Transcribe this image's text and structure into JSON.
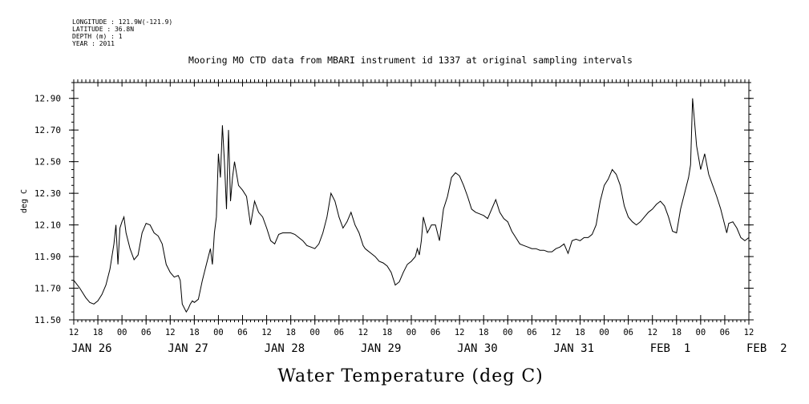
{
  "meta": [
    "LONGITUDE : 121.9W(-121.9)",
    "LATITUDE : 36.8N",
    "DEPTH (m) : 1",
    "YEAR : 2011"
  ],
  "chart_data": {
    "type": "line",
    "title": "Mooring MO CTD data from MBARI instrument id 1337 at original sampling intervals",
    "xlabel": "Water Temperature (deg C)",
    "ylabel": "deg C",
    "ylim": [
      11.5,
      13.0
    ],
    "yticks": [
      "11.50",
      "11.70",
      "11.90",
      "12.10",
      "12.30",
      "12.50",
      "12.70",
      "12.90"
    ],
    "xlim_hours_since_jan26_00": [
      12,
      180
    ],
    "hour_ticks": [
      "12",
      "18",
      "00",
      "06",
      "12",
      "18",
      "00",
      "06",
      "12",
      "18",
      "00",
      "06",
      "12",
      "18",
      "00",
      "06",
      "12",
      "18",
      "00",
      "06",
      "12",
      "18",
      "00",
      "06",
      "12",
      "18",
      "00",
      "06",
      "12"
    ],
    "date_labels": [
      "JAN 26",
      "JAN 27",
      "JAN 28",
      "JAN 29",
      "JAN 30",
      "JAN 31",
      "FEB  1",
      "FEB  2"
    ],
    "series": [
      {
        "x": [
          12,
          13.5,
          15,
          16,
          17,
          18,
          19,
          20,
          21,
          21.5,
          22,
          22.5,
          23,
          23.5,
          24,
          24.5,
          25,
          26,
          27,
          28,
          29,
          30,
          31,
          32,
          33,
          34,
          35,
          36,
          37,
          38,
          38.5,
          39,
          40,
          40.5,
          41,
          41.5,
          42,
          43,
          44,
          45,
          46,
          46.5,
          47,
          47.5,
          48,
          48.5,
          49,
          49.5,
          50,
          50.5,
          51,
          51.5,
          52,
          53,
          54,
          55,
          56,
          57,
          58,
          59,
          60,
          61,
          62,
          63,
          64,
          65,
          66,
          67,
          68,
          69,
          70,
          71,
          72,
          73,
          74,
          75,
          76,
          77,
          78,
          79,
          80,
          81,
          82,
          83,
          84,
          84.5,
          85,
          86,
          87,
          88,
          89,
          90,
          91,
          92,
          93,
          94,
          95,
          96,
          97,
          97.5,
          98,
          98.5,
          99,
          100,
          101,
          102,
          103,
          104,
          105,
          106,
          107,
          108,
          109,
          110,
          111,
          112,
          113,
          114,
          115,
          116,
          117,
          118,
          119,
          120,
          121,
          122,
          123,
          124,
          125,
          126,
          127,
          128,
          129,
          130,
          131,
          132,
          133,
          134,
          135,
          136,
          137,
          138,
          139,
          140,
          141,
          142,
          143,
          144,
          145,
          146,
          147,
          148,
          149,
          150,
          151,
          152,
          153,
          154,
          155,
          156,
          157,
          158,
          159,
          160,
          161,
          162,
          163,
          164,
          165,
          165.5,
          166,
          167,
          168,
          169,
          170,
          171,
          172,
          173,
          174,
          174.5,
          175,
          176,
          177,
          178,
          179,
          180
        ],
        "values": [
          11.75,
          11.7,
          11.64,
          11.61,
          11.6,
          11.62,
          11.66,
          11.72,
          11.82,
          11.9,
          11.98,
          12.1,
          11.85,
          12.08,
          12.12,
          12.15,
          12.05,
          11.95,
          11.88,
          11.91,
          12.05,
          12.11,
          12.1,
          12.05,
          12.03,
          11.98,
          11.85,
          11.8,
          11.77,
          11.78,
          11.75,
          11.6,
          11.55,
          11.57,
          11.6,
          11.62,
          11.61,
          11.63,
          11.75,
          11.85,
          11.95,
          11.85,
          12.05,
          12.15,
          12.55,
          12.4,
          12.73,
          12.5,
          12.2,
          12.7,
          12.25,
          12.4,
          12.5,
          12.35,
          12.32,
          12.28,
          12.1,
          12.25,
          12.18,
          12.15,
          12.08,
          12.0,
          11.98,
          12.04,
          12.05,
          12.05,
          12.05,
          12.04,
          12.02,
          12.0,
          11.97,
          11.96,
          11.95,
          11.98,
          12.05,
          12.15,
          12.3,
          12.25,
          12.15,
          12.08,
          12.12,
          12.18,
          12.1,
          12.05,
          11.97,
          11.95,
          11.94,
          11.92,
          11.9,
          11.87,
          11.86,
          11.84,
          11.8,
          11.72,
          11.74,
          11.8,
          11.85,
          11.87,
          11.9,
          11.95,
          11.91,
          12.0,
          12.15,
          12.05,
          12.1,
          12.1,
          12.0,
          12.2,
          12.28,
          12.4,
          12.43,
          12.41,
          12.35,
          12.28,
          12.2,
          12.18,
          12.17,
          12.16,
          12.14,
          12.2,
          12.26,
          12.18,
          12.14,
          12.12,
          12.06,
          12.02,
          11.98,
          11.97,
          11.96,
          11.95,
          11.95,
          11.94,
          11.94,
          11.93,
          11.93,
          11.95,
          11.96,
          11.98,
          11.92,
          12.0,
          12.01,
          12.0,
          12.02,
          12.02,
          12.04,
          12.1,
          12.25,
          12.35,
          12.39,
          12.45,
          12.42,
          12.35,
          12.22,
          12.15,
          12.12,
          12.1,
          12.12,
          12.15,
          12.18,
          12.2,
          12.23,
          12.25,
          12.22,
          12.15,
          12.06,
          12.05,
          12.2,
          12.3,
          12.4,
          12.48,
          12.9,
          12.6,
          12.45,
          12.55,
          12.42,
          12.35,
          12.28,
          12.2,
          12.1,
          12.05,
          12.11,
          12.12,
          12.08,
          12.02,
          12.0,
          12.02
        ]
      }
    ]
  },
  "axis": {
    "ylabel": "deg C",
    "xtitle": "Water Temperature (deg C)"
  }
}
